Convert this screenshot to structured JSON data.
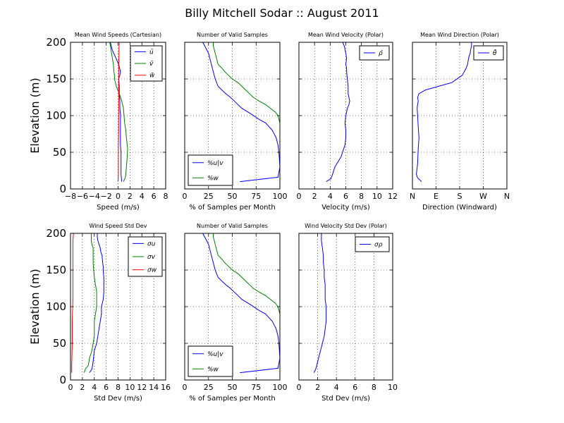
{
  "suptitle": "Billy Mitchell Sodar :: August 2011",
  "ylabel": "Elevation (m)",
  "chart_data": [
    {
      "type": "line",
      "title": "Mean Wind Speeds (Cartesian)",
      "xlabel": "Speed (m/s)",
      "xlim": [
        -8,
        8
      ],
      "ylim": [
        0,
        200
      ],
      "xticks": [
        -8,
        -6,
        -4,
        -2,
        0,
        2,
        4,
        6,
        8
      ],
      "xticklabels": [
        "−8",
        "−6",
        "−4",
        "−2",
        "0",
        "2",
        "4",
        "6",
        "8"
      ],
      "yticks": [
        0,
        50,
        100,
        150,
        200
      ],
      "grid": true,
      "legend": "top-right",
      "series": [
        {
          "name": "ū",
          "color": "#0000ff",
          "x": [
            0.6,
            0.5,
            0.5,
            0.5,
            0.5,
            0.4,
            0.4,
            0.4,
            0.4,
            0.4,
            0.3,
            0.3,
            0.2,
            0.2,
            0.1,
            0.3,
            0.4,
            0.1,
            -1.0,
            -1.3
          ],
          "y": [
            10,
            20,
            30,
            40,
            50,
            60,
            70,
            80,
            90,
            100,
            110,
            120,
            130,
            140,
            150,
            155,
            160,
            170,
            190,
            200
          ]
        },
        {
          "name": "v̄",
          "color": "#008000",
          "x": [
            0.9,
            1.2,
            1.3,
            1.4,
            1.5,
            1.6,
            1.4,
            1.3,
            1.1,
            1.0,
            0.9,
            0.6,
            0.2,
            -0.3,
            -0.6,
            -0.6,
            -0.7,
            -0.8,
            -1.2,
            -1.4
          ],
          "y": [
            10,
            15,
            20,
            30,
            40,
            55,
            70,
            80,
            90,
            100,
            110,
            120,
            130,
            140,
            150,
            155,
            160,
            170,
            190,
            200
          ]
        },
        {
          "name": "w̄",
          "color": "#ff0000",
          "x": [
            0.0,
            0.05,
            0.05,
            0.05,
            0.1,
            0.1,
            0.1,
            0.1,
            0.1,
            0.1,
            0.1,
            0.1,
            0.15,
            0.15,
            0.2
          ],
          "y": [
            10,
            20,
            40,
            60,
            80,
            100,
            120,
            130,
            140,
            150,
            160,
            170,
            180,
            190,
            200
          ]
        }
      ]
    },
    {
      "type": "line",
      "title": "Number of Valid Samples",
      "xlabel": "% of Samples per Month",
      "xlim": [
        0,
        100
      ],
      "ylim": [
        0,
        200
      ],
      "xticks": [
        0,
        25,
        50,
        75,
        100
      ],
      "xticklabels": [
        "0",
        "25",
        "50",
        "75",
        "100"
      ],
      "yticks": [
        0,
        50,
        100,
        150,
        200
      ],
      "grid": true,
      "legend": "bottom-left",
      "series": [
        {
          "name": "%u|v",
          "color": "#0000ff",
          "x": [
            58,
            98,
            100,
            99,
            98,
            96,
            92,
            85,
            78,
            70,
            60,
            52,
            48,
            43,
            39,
            35,
            32,
            30,
            28,
            26,
            25,
            23,
            19
          ],
          "y": [
            10,
            16,
            30,
            50,
            60,
            70,
            80,
            90,
            95,
            102,
            110,
            120,
            125,
            130,
            135,
            140,
            150,
            160,
            170,
            180,
            185,
            190,
            200
          ]
        },
        {
          "name": "%w",
          "color": "#008000",
          "x": [
            100,
            100,
            100,
            100,
            100,
            99,
            98,
            95,
            90,
            85,
            78,
            72,
            68,
            64,
            60,
            56,
            50,
            46,
            42,
            39,
            35,
            33,
            31,
            30,
            30
          ],
          "y": [
            10,
            30,
            50,
            70,
            90,
            95,
            100,
            105,
            110,
            115,
            120,
            125,
            130,
            135,
            140,
            145,
            150,
            155,
            160,
            165,
            170,
            180,
            190,
            195,
            200
          ]
        }
      ]
    },
    {
      "type": "line",
      "title": "Mean Wind Velocity (Polar)",
      "xlabel": "Velocity (m/s)",
      "xlim": [
        0,
        12
      ],
      "ylim": [
        0,
        200
      ],
      "xticks": [
        0,
        2,
        4,
        6,
        8,
        10,
        12
      ],
      "xticklabels": [
        "0",
        "2",
        "4",
        "6",
        "8",
        "10",
        "12"
      ],
      "yticks": [
        0,
        50,
        100,
        150,
        200
      ],
      "grid": true,
      "legend": "top-right",
      "series": [
        {
          "name": "ρ̄",
          "color": "#0000ff",
          "x": [
            3.5,
            4.1,
            4.3,
            4.6,
            5.0,
            5.4,
            5.7,
            5.9,
            6.0,
            6.0,
            5.9,
            6.0,
            6.2,
            6.4,
            6.5,
            6.3,
            6.3,
            6.2,
            6.1,
            6.1,
            6.0,
            6.1,
            6.0,
            5.9,
            5.8,
            5.6
          ],
          "y": [
            10,
            14,
            20,
            30,
            37,
            44,
            54,
            60,
            70,
            80,
            90,
            100,
            110,
            115,
            120,
            130,
            140,
            150,
            160,
            165,
            170,
            178,
            185,
            190,
            195,
            200
          ]
        }
      ]
    },
    {
      "type": "line",
      "title": "Mean Wind Direction (Polar)",
      "xlabel": "Direction (Windward)",
      "xlim": [
        0,
        360
      ],
      "ylim": [
        0,
        200
      ],
      "xticks": [
        0,
        90,
        180,
        270,
        360
      ],
      "xticklabels": [
        "N",
        "E",
        "S",
        "W",
        "N"
      ],
      "yticks": [
        0,
        50,
        100,
        150,
        200
      ],
      "grid": true,
      "legend": "top-right",
      "series": [
        {
          "name": "θ̄",
          "color": "#0000ff",
          "x": [
            35,
            20,
            15,
            20,
            22,
            25,
            22,
            20,
            18,
            20,
            22,
            20,
            25,
            50,
            100,
            150,
            190,
            205,
            210,
            215,
            220,
            222,
            225,
            225,
            220
          ],
          "y": [
            10,
            15,
            20,
            35,
            55,
            70,
            85,
            100,
            110,
            115,
            120,
            125,
            130,
            135,
            140,
            145,
            155,
            165,
            170,
            180,
            185,
            190,
            195,
            200,
            200
          ]
        }
      ]
    },
    {
      "type": "line",
      "title": "Wind Speed Std Dev",
      "xlabel": "Std Dev (m/s)",
      "xlim": [
        0,
        16
      ],
      "ylim": [
        0,
        200
      ],
      "xticks": [
        0,
        2,
        4,
        6,
        8,
        10,
        12,
        14,
        16
      ],
      "xticklabels": [
        "0",
        "2",
        "4",
        "6",
        "8",
        "10",
        "12",
        "14",
        "16"
      ],
      "yticks": [
        0,
        50,
        100,
        150,
        200
      ],
      "grid": true,
      "legend": "top-right",
      "series": [
        {
          "name": "σu",
          "color": "#0000ff",
          "x": [
            3.2,
            3.6,
            3.8,
            4.0,
            4.4,
            4.6,
            4.8,
            5.0,
            5.2,
            5.2,
            5.5,
            5.6,
            5.6,
            5.6,
            5.5,
            5.5,
            5.4,
            5.3,
            5.1,
            5.0,
            4.8,
            4.6,
            4.5,
            4.5
          ],
          "y": [
            10,
            15,
            25,
            40,
            50,
            60,
            70,
            80,
            90,
            100,
            110,
            120,
            130,
            140,
            150,
            155,
            160,
            170,
            175,
            180,
            185,
            190,
            195,
            200
          ]
        },
        {
          "name": "σv",
          "color": "#008000",
          "x": [
            2.3,
            2.5,
            3.0,
            3.2,
            3.6,
            3.8,
            4.0,
            4.0,
            4.0,
            4.2,
            4.4,
            4.4,
            4.4,
            4.2,
            4.0,
            3.9,
            3.8,
            3.8,
            3.8,
            3.8,
            3.6,
            3.5,
            3.5
          ],
          "y": [
            10,
            15,
            20,
            30,
            40,
            50,
            60,
            70,
            80,
            90,
            100,
            110,
            120,
            130,
            140,
            150,
            160,
            170,
            175,
            180,
            185,
            190,
            200
          ]
        },
        {
          "name": "σw",
          "color": "#ff0000",
          "x": [
            0.2,
            0.2,
            0.3,
            0.3,
            0.4,
            0.4,
            0.4,
            0.4,
            0.5
          ],
          "y": [
            10,
            20,
            50,
            80,
            110,
            140,
            170,
            190,
            200
          ]
        }
      ]
    },
    {
      "type": "line",
      "title": "Number of Valid Samples",
      "xlabel": "% of Samples per Month",
      "xlim": [
        0,
        100
      ],
      "ylim": [
        0,
        200
      ],
      "xticks": [
        0,
        25,
        50,
        75,
        100
      ],
      "xticklabels": [
        "0",
        "25",
        "50",
        "75",
        "100"
      ],
      "yticks": [
        0,
        50,
        100,
        150,
        200
      ],
      "grid": true,
      "legend": "bottom-left",
      "series": [
        {
          "name": "%u|v",
          "color": "#0000ff",
          "x": [
            58,
            98,
            100,
            99,
            98,
            96,
            92,
            85,
            78,
            70,
            60,
            52,
            48,
            43,
            39,
            35,
            32,
            30,
            28,
            26,
            25,
            23,
            19
          ],
          "y": [
            10,
            16,
            30,
            50,
            60,
            70,
            80,
            90,
            95,
            102,
            110,
            120,
            125,
            130,
            135,
            140,
            150,
            160,
            170,
            180,
            185,
            190,
            200
          ]
        },
        {
          "name": "%w",
          "color": "#008000",
          "x": [
            100,
            100,
            100,
            100,
            100,
            99,
            98,
            95,
            90,
            85,
            78,
            72,
            68,
            64,
            60,
            56,
            50,
            46,
            42,
            39,
            35,
            33,
            31,
            30,
            30
          ],
          "y": [
            10,
            30,
            50,
            70,
            90,
            95,
            100,
            105,
            110,
            115,
            120,
            125,
            130,
            135,
            140,
            145,
            150,
            155,
            160,
            165,
            170,
            180,
            190,
            195,
            200
          ]
        }
      ]
    },
    {
      "type": "line",
      "title": "Wind Velocity Std Dev (Polar)",
      "xlabel": "Std Dev (m/s)",
      "xlim": [
        0,
        10
      ],
      "ylim": [
        0,
        200
      ],
      "xticks": [
        0,
        2,
        4,
        6,
        8,
        10
      ],
      "xticklabels": [
        "0",
        "2",
        "4",
        "6",
        "8",
        "10"
      ],
      "yticks": [
        0,
        50,
        100,
        150,
        200
      ],
      "grid": true,
      "legend": "top-right",
      "series": [
        {
          "name": "σρ",
          "color": "#0000ff",
          "x": [
            1.6,
            1.8,
            1.9,
            2.1,
            2.3,
            2.5,
            2.7,
            2.8,
            2.9,
            2.9,
            2.8,
            2.8,
            2.8,
            2.7,
            2.7,
            2.6,
            2.6,
            2.5,
            2.4,
            2.4
          ],
          "y": [
            10,
            15,
            20,
            30,
            40,
            50,
            60,
            70,
            80,
            100,
            110,
            120,
            130,
            140,
            150,
            160,
            170,
            180,
            190,
            200
          ]
        }
      ]
    }
  ]
}
